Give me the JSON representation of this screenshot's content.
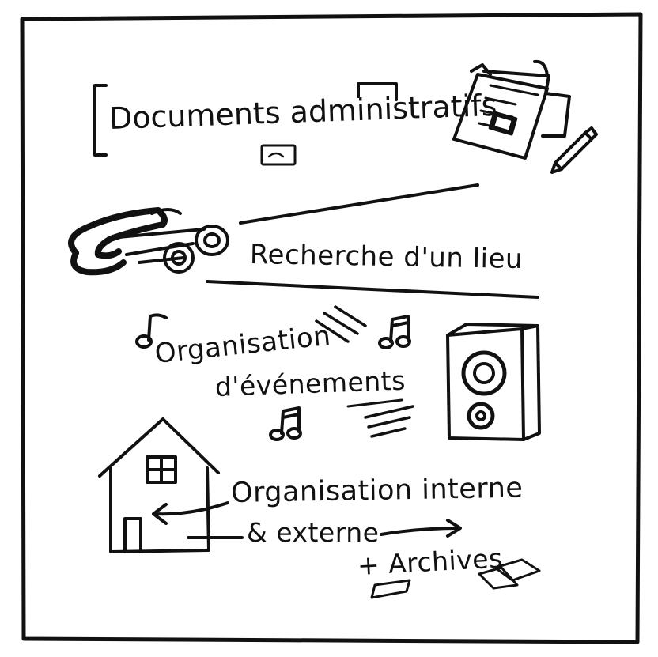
{
  "sketch": {
    "items": [
      {
        "id": "docs",
        "text": "Documents administratifs"
      },
      {
        "id": "lieu",
        "text": "Recherche d'un lieu"
      },
      {
        "id": "org1",
        "text": "Organisation"
      },
      {
        "id": "org2",
        "text": "d'événements"
      },
      {
        "id": "int",
        "text": "Organisation interne"
      },
      {
        "id": "ext",
        "text": "& externe"
      },
      {
        "id": "arch",
        "text": "+ Archives"
      }
    ]
  },
  "colors": {
    "ink": "#111111",
    "paper": "#ffffff"
  },
  "icons": [
    "document-stack-icon",
    "pencil-icon",
    "binoculars-icon",
    "music-note-icon",
    "speaker-icon",
    "house-icon",
    "arrow-icon",
    "archive-papers-icon"
  ]
}
